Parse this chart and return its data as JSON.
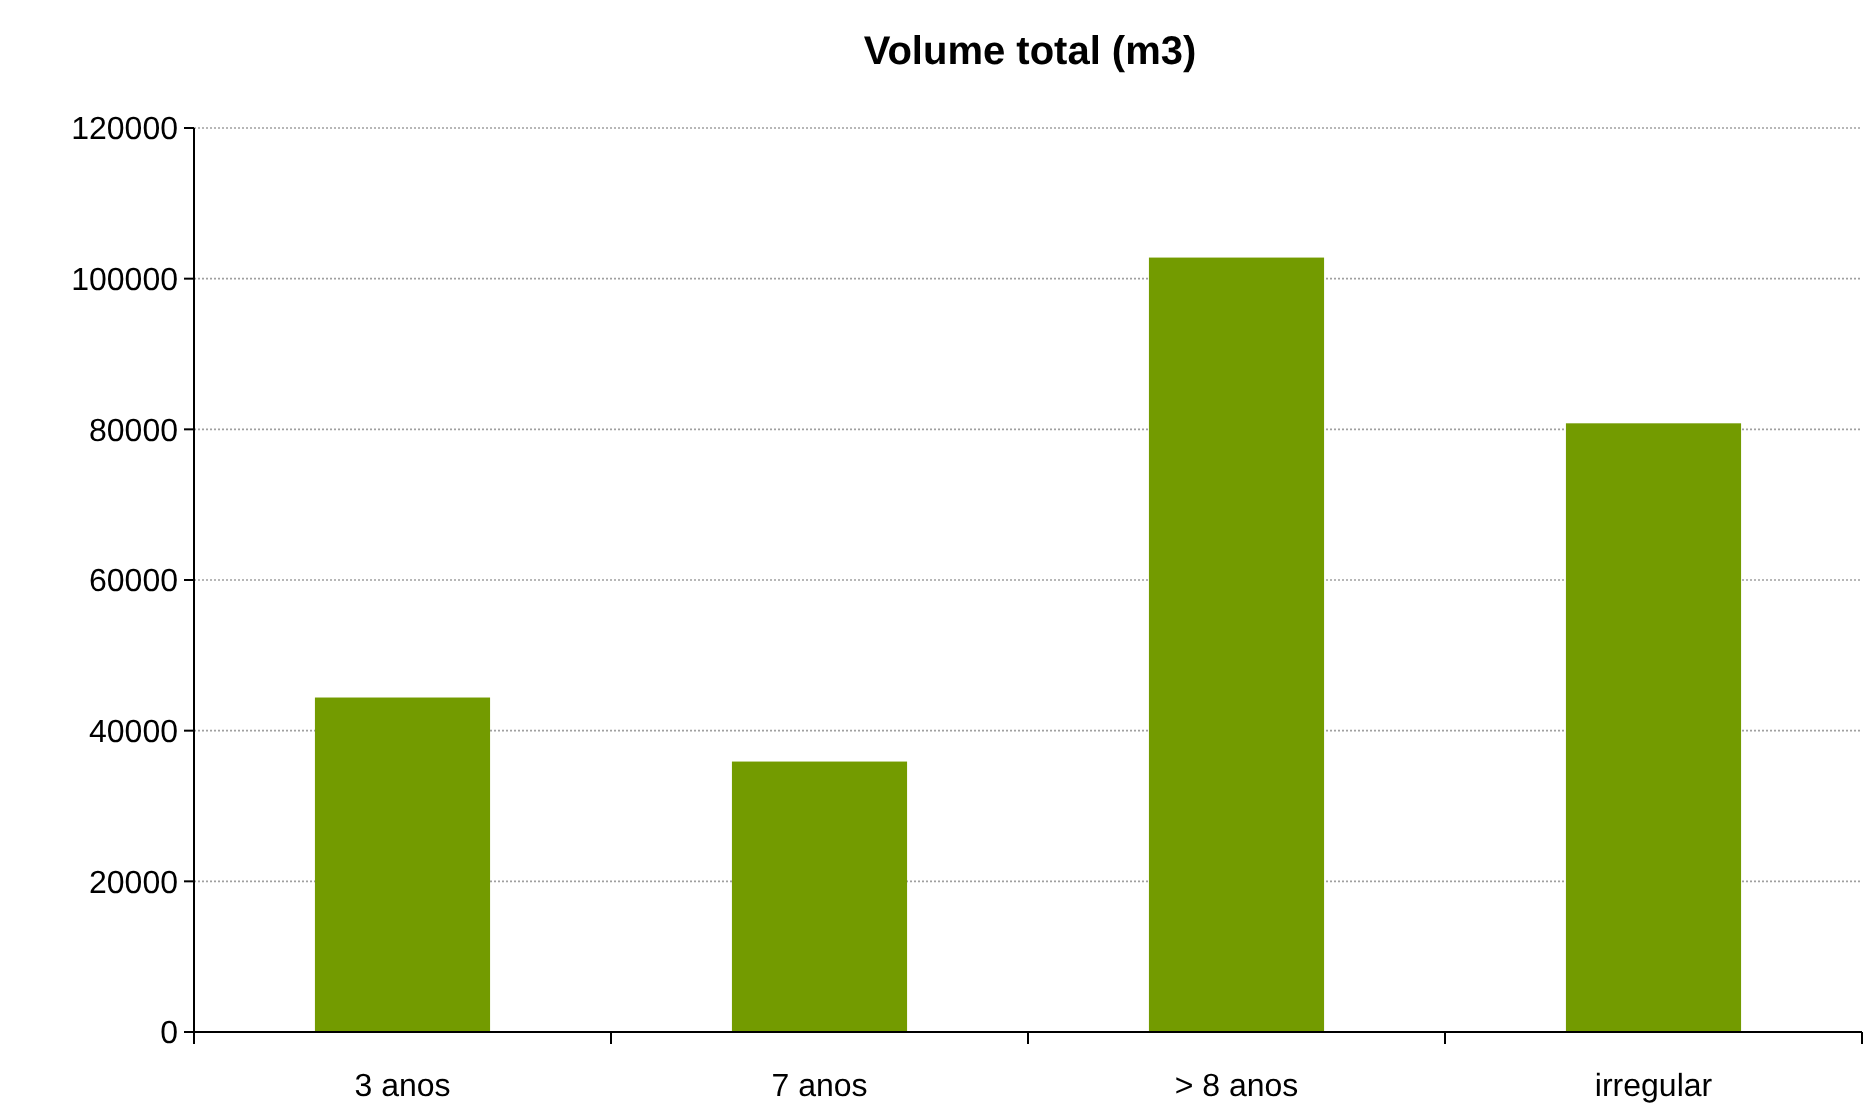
{
  "chart_data": {
    "type": "bar",
    "title": "Volume total (m3)",
    "categories": [
      "3 anos",
      "7 anos",
      "> 8 anos",
      "irregular"
    ],
    "values": [
      44400,
      35900,
      102800,
      80800
    ],
    "color": "#739b00",
    "ylim": [
      0,
      120000
    ],
    "yticks": [
      0,
      20000,
      40000,
      60000,
      80000,
      100000,
      120000
    ],
    "grid": "y"
  }
}
